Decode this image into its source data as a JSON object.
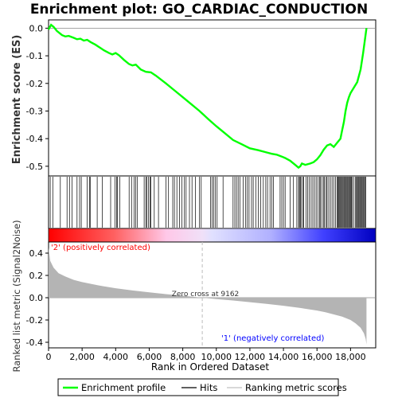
{
  "chart_data": {
    "type": "line",
    "title": "Enrichment plot: GO_CARDIAC_CONDUCTION",
    "xlabel": "Rank in Ordered Dataset",
    "ylabel_top": "Enrichment score (ES)",
    "ylabel_bottom": "Ranked list metric (Signal2Noise)",
    "xlim": [
      0,
      19500
    ],
    "x_ticks": [
      0,
      2000,
      4000,
      6000,
      8000,
      10000,
      12000,
      14000,
      16000,
      18000
    ],
    "x_tick_labels": [
      "0",
      "2,000",
      "4,000",
      "6,000",
      "8,000",
      "10,000",
      "12,000",
      "14,000",
      "16,000",
      "18,000"
    ],
    "es_ylim": [
      -0.535,
      0.03
    ],
    "es_ticks": [
      0.0,
      -0.1,
      -0.2,
      -0.3,
      -0.4,
      -0.5
    ],
    "es_tick_labels": [
      "0.0",
      "-0.1",
      "-0.2",
      "-0.3",
      "-0.4",
      "-0.5"
    ],
    "metric_ylim": [
      -0.45,
      0.5
    ],
    "metric_ticks": [
      0.4,
      0.2,
      0.0,
      -0.2,
      -0.4
    ],
    "metric_tick_labels": [
      "0.4",
      "0.2",
      "0.0",
      "-0.2",
      "-0.4"
    ],
    "enrichment_profile": {
      "x": [
        0,
        150,
        300,
        500,
        800,
        1000,
        1200,
        1500,
        1700,
        1900,
        2100,
        2300,
        2500,
        2800,
        3000,
        3300,
        3600,
        3800,
        4000,
        4200,
        4500,
        4800,
        5000,
        5200,
        5500,
        5800,
        6100,
        6400,
        7000,
        7500,
        8000,
        8500,
        9000,
        9500,
        10000,
        10500,
        11000,
        11500,
        12000,
        12500,
        13000,
        13300,
        13600,
        13900,
        14100,
        14400,
        14700,
        14900,
        15000,
        15100,
        15300,
        15600,
        15800,
        16000,
        16200,
        16400,
        16600,
        16800,
        17000,
        17200,
        17400,
        17500,
        17600,
        17700,
        17800,
        17900,
        18000,
        18200,
        18400,
        18600,
        18750,
        18850,
        18950
      ],
      "y": [
        -0.005,
        0.012,
        0.005,
        -0.01,
        -0.025,
        -0.03,
        -0.028,
        -0.035,
        -0.04,
        -0.038,
        -0.045,
        -0.042,
        -0.05,
        -0.06,
        -0.068,
        -0.08,
        -0.09,
        -0.095,
        -0.09,
        -0.098,
        -0.115,
        -0.13,
        -0.135,
        -0.132,
        -0.15,
        -0.158,
        -0.16,
        -0.172,
        -0.2,
        -0.225,
        -0.25,
        -0.275,
        -0.3,
        -0.328,
        -0.355,
        -0.38,
        -0.405,
        -0.42,
        -0.435,
        -0.442,
        -0.45,
        -0.455,
        -0.458,
        -0.465,
        -0.47,
        -0.48,
        -0.495,
        -0.505,
        -0.5,
        -0.49,
        -0.495,
        -0.49,
        -0.485,
        -0.475,
        -0.46,
        -0.44,
        -0.425,
        -0.42,
        -0.43,
        -0.415,
        -0.4,
        -0.37,
        -0.34,
        -0.3,
        -0.27,
        -0.25,
        -0.235,
        -0.215,
        -0.195,
        -0.15,
        -0.09,
        -0.045,
        0.0
      ]
    },
    "hits": [
      100,
      250,
      700,
      1100,
      1250,
      1400,
      1700,
      1850,
      1950,
      2300,
      2450,
      2500,
      2900,
      3200,
      3700,
      3950,
      4050,
      4100,
      4250,
      4800,
      4950,
      5100,
      5200,
      5300,
      5700,
      5800,
      5850,
      5950,
      6050,
      6100,
      6300,
      6550,
      7000,
      7150,
      7400,
      7500,
      7650,
      7800,
      7950,
      8100,
      8200,
      8400,
      8550,
      8750,
      9000,
      9100,
      9650,
      9750,
      9850,
      9950,
      10050,
      10400,
      11000,
      11100,
      11200,
      11300,
      11400,
      11600,
      11750,
      11850,
      11950,
      12100,
      12200,
      12350,
      12500,
      12650,
      12800,
      12950,
      13050,
      13200,
      13300,
      13400,
      13800,
      13900,
      14000,
      14100,
      14400,
      14600,
      14800,
      14900,
      14950,
      15000,
      15050,
      15150,
      15200,
      15350,
      15450,
      15550,
      15650,
      15750,
      15850,
      15950,
      16050,
      16150,
      16200,
      16300,
      16400,
      16450,
      16550,
      16600,
      16700,
      16800,
      16900,
      17000,
      17100,
      17200,
      17250,
      17300,
      17350,
      17400,
      17450,
      17500,
      17550,
      17600,
      17650,
      17700,
      17750,
      17800,
      17850,
      17900,
      17950,
      18000,
      18050,
      18100,
      18200,
      18300,
      18350,
      18400,
      18450,
      18500,
      18550,
      18600,
      18650,
      18700,
      18750,
      18800,
      18850,
      18900
    ],
    "ranking_metric": {
      "x": [
        0,
        100,
        300,
        600,
        1000,
        1500,
        2000,
        3000,
        4000,
        5000,
        6000,
        7000,
        8000,
        9162,
        10000,
        11000,
        12000,
        13000,
        14000,
        15000,
        16000,
        16500,
        17000,
        17500,
        18000,
        18300,
        18600,
        18800,
        18900,
        18950
      ],
      "y": [
        0.45,
        0.33,
        0.27,
        0.22,
        0.19,
        0.16,
        0.14,
        0.11,
        0.085,
        0.065,
        0.048,
        0.032,
        0.018,
        0.0,
        -0.012,
        -0.025,
        -0.04,
        -0.055,
        -0.072,
        -0.092,
        -0.115,
        -0.13,
        -0.15,
        -0.17,
        -0.2,
        -0.23,
        -0.27,
        -0.32,
        -0.37,
        -0.42
      ]
    },
    "zero_cross": 9162,
    "zero_cross_label": "Zero cross at 9162",
    "pos_label": "'2' (positively correlated)",
    "neg_label": "'1' (negatively correlated)",
    "legend": [
      {
        "name": "Enrichment profile",
        "color": "#00ff00"
      },
      {
        "name": "Hits",
        "color": "#000000"
      },
      {
        "name": "Ranking metric scores",
        "color": "#c0c0c0"
      }
    ],
    "colors": {
      "profile": "#00ff00",
      "metric_fill": "#b4b4b4",
      "pos_label": "#ff0000",
      "neg_label": "#0000ff"
    }
  }
}
